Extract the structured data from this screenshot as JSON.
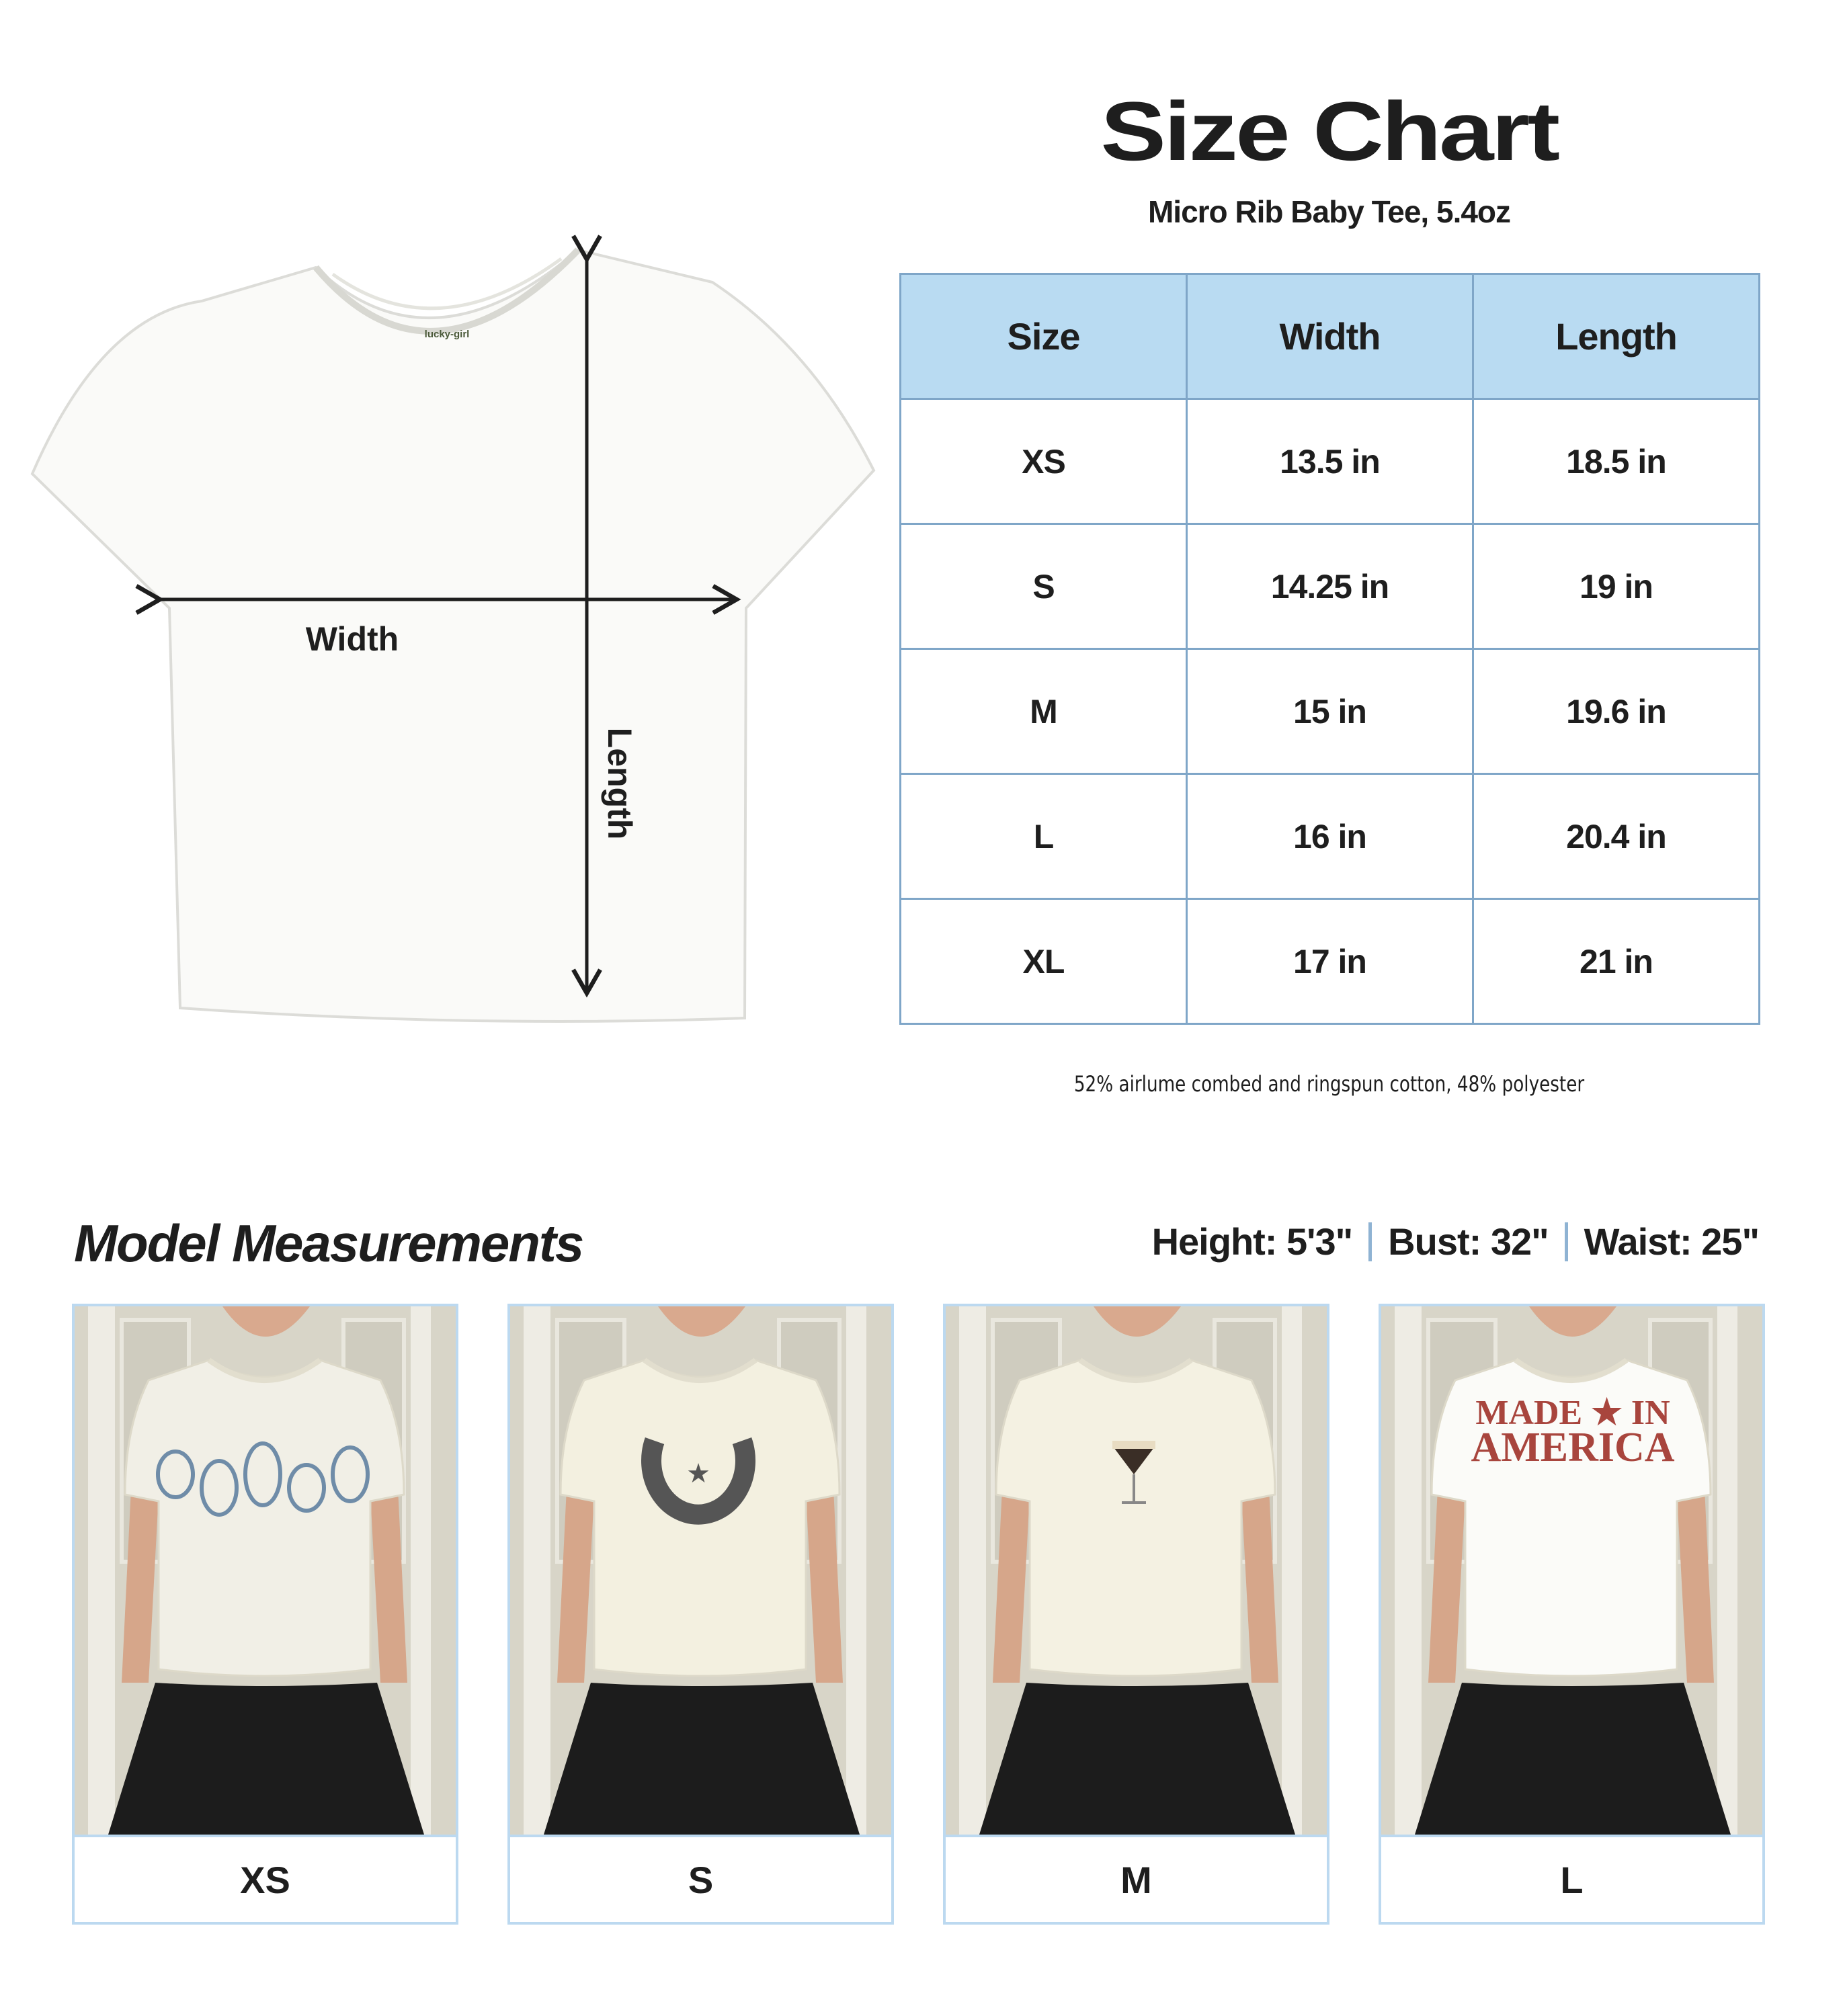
{
  "size_chart": {
    "title": "Size Chart",
    "subtitle": "Micro Rib Baby Tee, 5.4oz",
    "headers": [
      "Size",
      "Width",
      "Length"
    ],
    "rows": [
      [
        "XS",
        "13.5 in",
        "18.5 in"
      ],
      [
        "S",
        "14.25 in",
        "19 in"
      ],
      [
        "M",
        "15 in",
        "19.6 in"
      ],
      [
        "L",
        "16 in",
        "20.4 in"
      ],
      [
        "XL",
        "17 in",
        "21 in"
      ]
    ],
    "footnote": "52% airlume combed and ringspun cotton, 48% polyester",
    "header_color": "#b9dbf2",
    "border_color": "#7fa6c8"
  },
  "diagram": {
    "width_label": "Width",
    "length_label": "Length",
    "tag_text": "lucky-girl"
  },
  "model": {
    "title": "Model Measurements",
    "height": "Height: 5'3\"",
    "bust": "Bust: 32\"",
    "waist": "Waist: 25\"",
    "photos": [
      {
        "size": "XS",
        "graphic": "seashells",
        "shirt_color": "#f1efe6"
      },
      {
        "size": "S",
        "graphic": "horseshoe",
        "shirt_color": "#f3f0e0"
      },
      {
        "size": "M",
        "graphic": "espresso-martini",
        "shirt_color": "#f4f1e2"
      },
      {
        "size": "L",
        "graphic": "made-in-america",
        "shirt_color": "#fbfbf8",
        "print_line1": "MADE ★ IN",
        "print_line2": "AMERICA"
      }
    ]
  }
}
